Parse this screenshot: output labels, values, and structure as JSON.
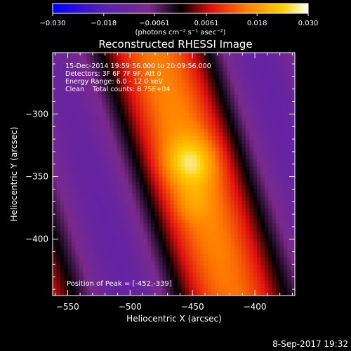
{
  "colorbar": {
    "ticks": [
      "-0.030",
      "-0.018",
      "-0.0061",
      "0.0061",
      "0.018",
      "0.030"
    ],
    "tick_values": [
      -0.03,
      -0.018,
      -0.0061,
      0.0061,
      0.018,
      0.03
    ],
    "range": [
      -0.03,
      0.03
    ],
    "units": "(photons cm⁻² s⁻¹ asec⁻²)",
    "colormap": [
      "#0000ff",
      "#5a20b0",
      "#7a2a8a",
      "#000000",
      "#e01010",
      "#ff8000",
      "#ffd000",
      "#ffffff"
    ]
  },
  "chart_data": {
    "type": "heatmap",
    "title": "Reconstructed RHESSI Image",
    "xlabel": "Heliocentric X (arcsec)",
    "ylabel": "Heliocentric Y (arcsec)",
    "xlim": [
      -562,
      -368
    ],
    "ylim": [
      -445,
      -251
    ],
    "xticks": [
      -550,
      -500,
      -450,
      -400
    ],
    "yticks": [
      -300,
      -350,
      -400
    ],
    "xtick_labels": [
      "−550",
      "−500",
      "−450",
      "−400"
    ],
    "ytick_labels": [
      "−300",
      "−350",
      "−400"
    ],
    "annotations": {
      "time": "15-Dec-2014 19:59:56.000 to 20:09:56.000",
      "detectors": "Detectors: 3F 6F 7F 9F, Att 0",
      "energy": "Energy Range: 6.0 - 12.0 keV",
      "clean": "Clean    Total counts: 8.75E+04",
      "peak": "Position of Peak = [-452,-339]"
    },
    "peak_position": [
      -452,
      -339
    ],
    "grid": false
  },
  "footer": {
    "date": "8-Sep-2017 19:32"
  }
}
